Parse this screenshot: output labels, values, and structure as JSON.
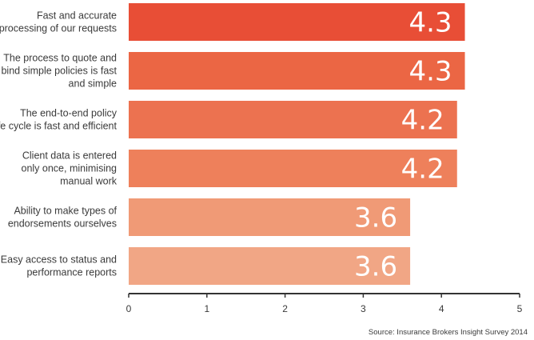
{
  "chart_data": {
    "type": "bar",
    "orientation": "horizontal",
    "categories": [
      [
        "Fast and accurate",
        "processing of our requests"
      ],
      [
        "The process to quote and",
        "bind simple policies is fast",
        "and simple"
      ],
      [
        "The end-to-end policy",
        "life cycle is fast and efficient"
      ],
      [
        "Client data is entered",
        "only once, minimising",
        "manual work"
      ],
      [
        "Ability to make types of",
        "endorsements ourselves"
      ],
      [
        "Easy access to status and",
        "performance reports"
      ]
    ],
    "values": [
      4.3,
      4.3,
      4.2,
      4.2,
      3.6,
      3.6
    ],
    "value_labels": [
      "4.3",
      "4.3",
      "4.2",
      "4.2",
      "3.6",
      "3.6"
    ],
    "bar_colors": [
      "#e84e36",
      "#eb6644",
      "#ec7250",
      "#ee805b",
      "#f09a76",
      "#f1a685"
    ],
    "xlim": [
      0,
      5
    ],
    "x_ticks": [
      "0",
      "1",
      "2",
      "3",
      "4",
      "5"
    ],
    "grid": false,
    "source": "Source: Insurance Brokers Insight Survey 2014"
  }
}
